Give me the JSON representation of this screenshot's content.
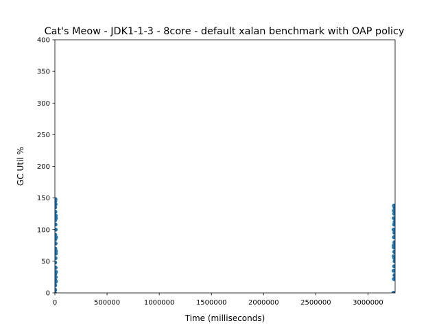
{
  "chart_data": {
    "type": "scatter",
    "title": "Cat's Meow - JDK1-1-3 - 8core -  default xalan benchmark with OAP policy",
    "xlabel": "Time (milliseconds)",
    "ylabel": "GC Util %",
    "xlim": [
      0,
      3260000
    ],
    "ylim": [
      0,
      400
    ],
    "x_ticks": [
      0,
      500000,
      1000000,
      1500000,
      2000000,
      2500000,
      3000000
    ],
    "x_tick_labels": [
      "0",
      "500000",
      "1000000",
      "1500000",
      "2000000",
      "2500000",
      "3000000"
    ],
    "y_ticks": [
      0,
      50,
      100,
      150,
      200,
      250,
      300,
      350,
      400
    ],
    "y_tick_labels": [
      "0",
      "50",
      "100",
      "150",
      "200",
      "250",
      "300",
      "350",
      "400"
    ],
    "grid": false,
    "legend": "none",
    "marker_color": "#1f77b4",
    "series": [
      {
        "points": [
          [
            0,
            0
          ],
          [
            2000,
            12
          ],
          [
            4000,
            20
          ],
          [
            3000,
            30
          ],
          [
            6000,
            40
          ],
          [
            2000,
            48
          ],
          [
            5000,
            55
          ],
          [
            8000,
            62
          ],
          [
            3000,
            70
          ],
          [
            6000,
            78
          ],
          [
            4000,
            85
          ],
          [
            2000,
            92
          ],
          [
            7000,
            100
          ],
          [
            5000,
            108
          ],
          [
            3000,
            115
          ],
          [
            8000,
            122
          ],
          [
            4000,
            128
          ],
          [
            2000,
            135
          ],
          [
            6000,
            140
          ],
          [
            3000,
            145
          ],
          [
            5000,
            148
          ],
          [
            9000,
            18
          ],
          [
            10000,
            33
          ],
          [
            9000,
            66
          ],
          [
            10000,
            88
          ],
          [
            9000,
            118
          ],
          [
            1000,
            5
          ],
          [
            7000,
            25
          ],
          [
            3245000,
            0
          ],
          [
            3250000,
            22
          ],
          [
            3255000,
            28
          ],
          [
            3247000,
            35
          ],
          [
            3252000,
            42
          ],
          [
            3256000,
            50
          ],
          [
            3248000,
            58
          ],
          [
            3253000,
            65
          ],
          [
            3249000,
            72
          ],
          [
            3255000,
            80
          ],
          [
            3250000,
            88
          ],
          [
            3254000,
            95
          ],
          [
            3247000,
            100
          ],
          [
            3252000,
            108
          ],
          [
            3256000,
            112
          ],
          [
            3249000,
            118
          ],
          [
            3253000,
            125
          ],
          [
            3250000,
            130
          ],
          [
            3255000,
            135
          ],
          [
            3251000,
            138
          ],
          [
            3254000,
            55
          ],
          [
            3248000,
            75
          ]
        ]
      }
    ]
  }
}
